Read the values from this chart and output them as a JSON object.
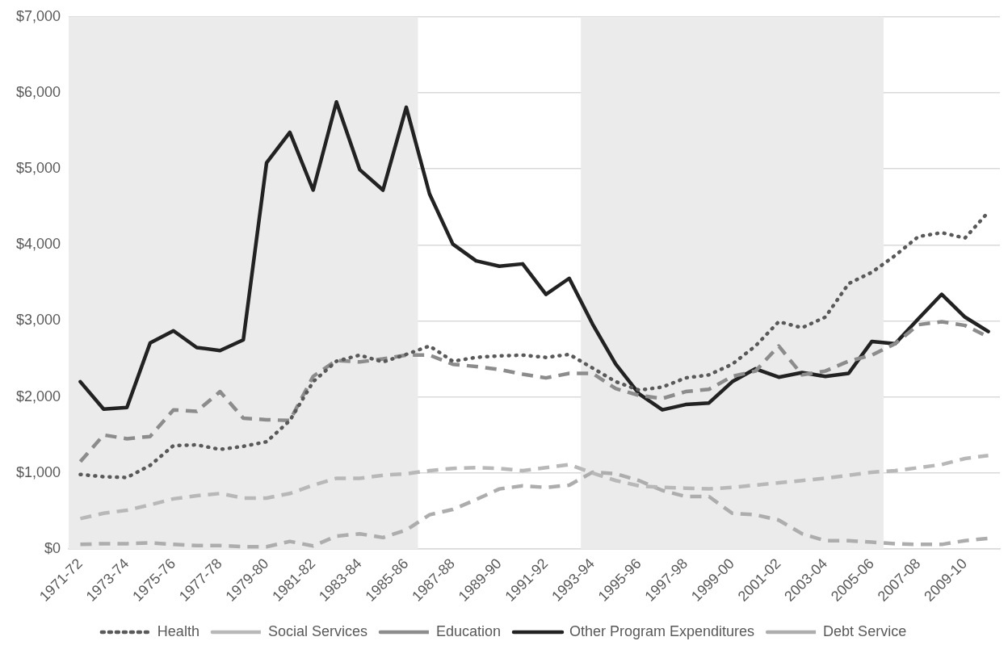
{
  "chart_data": {
    "type": "line",
    "categories": [
      "1971-72",
      null,
      "1973-74",
      null,
      "1975-76",
      null,
      "1977-78",
      null,
      "1979-80",
      null,
      "1981-82",
      null,
      "1983-84",
      null,
      "1985-86",
      null,
      "1987-88",
      null,
      "1989-90",
      null,
      "1991-92",
      null,
      "1993-94",
      null,
      "1995-96",
      null,
      "1997-98",
      null,
      "1999-00",
      null,
      "2001-02",
      null,
      "2003-04",
      null,
      "2005-06",
      null,
      "2007-08",
      null,
      "2009-10",
      null
    ],
    "series": [
      {
        "name": "Health",
        "color": "#595959",
        "line_style": "dotted",
        "values": [
          980,
          950,
          940,
          1100,
          1360,
          1370,
          1310,
          1350,
          1410,
          1690,
          2200,
          2470,
          2550,
          2460,
          2560,
          2670,
          2470,
          2520,
          2540,
          2550,
          2520,
          2560,
          2380,
          2200,
          2090,
          2130,
          2250,
          2290,
          2430,
          2670,
          2990,
          2910,
          3050,
          3490,
          3640,
          3860,
          4110,
          4160,
          4090,
          4430
        ]
      },
      {
        "name": "Social Services",
        "color": "#b8b8b8",
        "line_style": "dashed",
        "values": [
          400,
          470,
          510,
          580,
          660,
          700,
          730,
          670,
          670,
          730,
          840,
          930,
          930,
          970,
          990,
          1030,
          1060,
          1070,
          1060,
          1030,
          1070,
          1110,
          1000,
          900,
          830,
          810,
          800,
          790,
          810,
          840,
          870,
          900,
          930,
          970,
          1010,
          1030,
          1070,
          1110,
          1190,
          1230
        ]
      },
      {
        "name": "Education",
        "color": "#8c8c8c",
        "line_style": "dashed",
        "values": [
          1150,
          1500,
          1450,
          1480,
          1830,
          1810,
          2070,
          1720,
          1700,
          1690,
          2270,
          2480,
          2460,
          2500,
          2550,
          2550,
          2430,
          2400,
          2360,
          2300,
          2250,
          2310,
          2310,
          2110,
          2020,
          1980,
          2070,
          2100,
          2270,
          2340,
          2670,
          2290,
          2340,
          2470,
          2550,
          2700,
          2950,
          2990,
          2940,
          2790
        ]
      },
      {
        "name": "Other Program Expenditures",
        "color": "#222222",
        "line_style": "solid",
        "values": [
          2200,
          1840,
          1860,
          2710,
          2870,
          2650,
          2610,
          2750,
          5080,
          5480,
          4720,
          5880,
          4990,
          4720,
          5810,
          4670,
          4010,
          3790,
          3720,
          3750,
          3350,
          3560,
          2960,
          2430,
          2040,
          1830,
          1900,
          1920,
          2200,
          2370,
          2260,
          2320,
          2270,
          2310,
          2730,
          2700,
          3030,
          3350,
          3050,
          2860
        ]
      },
      {
        "name": "Debt Service",
        "color": "#adadad",
        "line_style": "dashed",
        "values": [
          60,
          70,
          70,
          80,
          60,
          45,
          45,
          30,
          30,
          100,
          40,
          170,
          200,
          150,
          250,
          450,
          520,
          650,
          790,
          830,
          810,
          840,
          1010,
          990,
          900,
          770,
          690,
          690,
          470,
          450,
          380,
          200,
          110,
          110,
          90,
          70,
          60,
          60,
          110,
          140
        ]
      }
    ],
    "ylim": [
      0,
      7000
    ],
    "yticks": [
      {
        "value": 0,
        "label": "$0"
      },
      {
        "value": 1000,
        "label": "$1,000"
      },
      {
        "value": 2000,
        "label": "$2,000"
      },
      {
        "value": 3000,
        "label": "$3,000"
      },
      {
        "value": 4000,
        "label": "$4,000"
      },
      {
        "value": 5000,
        "label": "$5,000"
      },
      {
        "value": 6000,
        "label": "$6,000"
      },
      {
        "value": 7000,
        "label": "$7,000"
      }
    ],
    "grid": "y",
    "legend": "bottom",
    "marker": "none",
    "bands": [
      {
        "axis": "x",
        "from": "1971-72",
        "to": "1985-86",
        "color": "#ebebeb"
      },
      {
        "axis": "x",
        "from": "1993-94",
        "to": "2005-06",
        "color": "#ebebeb"
      }
    ]
  }
}
